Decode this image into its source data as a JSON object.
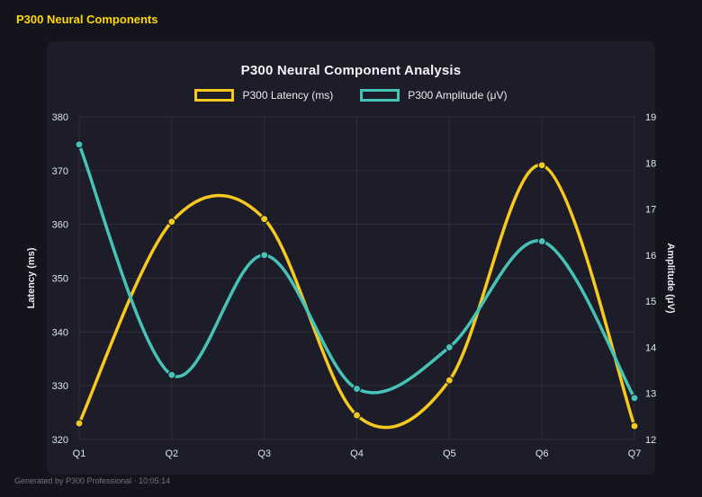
{
  "page": {
    "header": "P300 Neural Components",
    "footer": "Generated by P300 Professional · 10:05:14"
  },
  "chart_data": {
    "type": "line",
    "title": "P300 Neural Component Analysis",
    "categories": [
      "Q1",
      "Q2",
      "Q3",
      "Q4",
      "Q5",
      "Q6",
      "Q7"
    ],
    "series": [
      {
        "name": "P300 Latency (ms)",
        "axis": "left",
        "color": "#f5c91d",
        "values": [
          323,
          360.5,
          361,
          324.5,
          331,
          371,
          322.5
        ]
      },
      {
        "name": "P300 Amplitude (μV)",
        "axis": "right",
        "color": "#46c3b7",
        "values": [
          18.4,
          13.4,
          16.0,
          13.1,
          14.0,
          16.3,
          12.9
        ]
      }
    ],
    "left_axis": {
      "label": "Latency (ms)",
      "min": 320,
      "max": 380,
      "step": 10
    },
    "right_axis": {
      "label": "Amplitude (μV)",
      "min": 12,
      "max": 19,
      "step": 1
    },
    "grid": true,
    "legend_position": "top",
    "colors": {
      "background": "#14141d",
      "panel": "#1d1d2a",
      "grid": "rgba(255,255,255,0.08)",
      "tick_text": "#dfe2ea"
    }
  }
}
